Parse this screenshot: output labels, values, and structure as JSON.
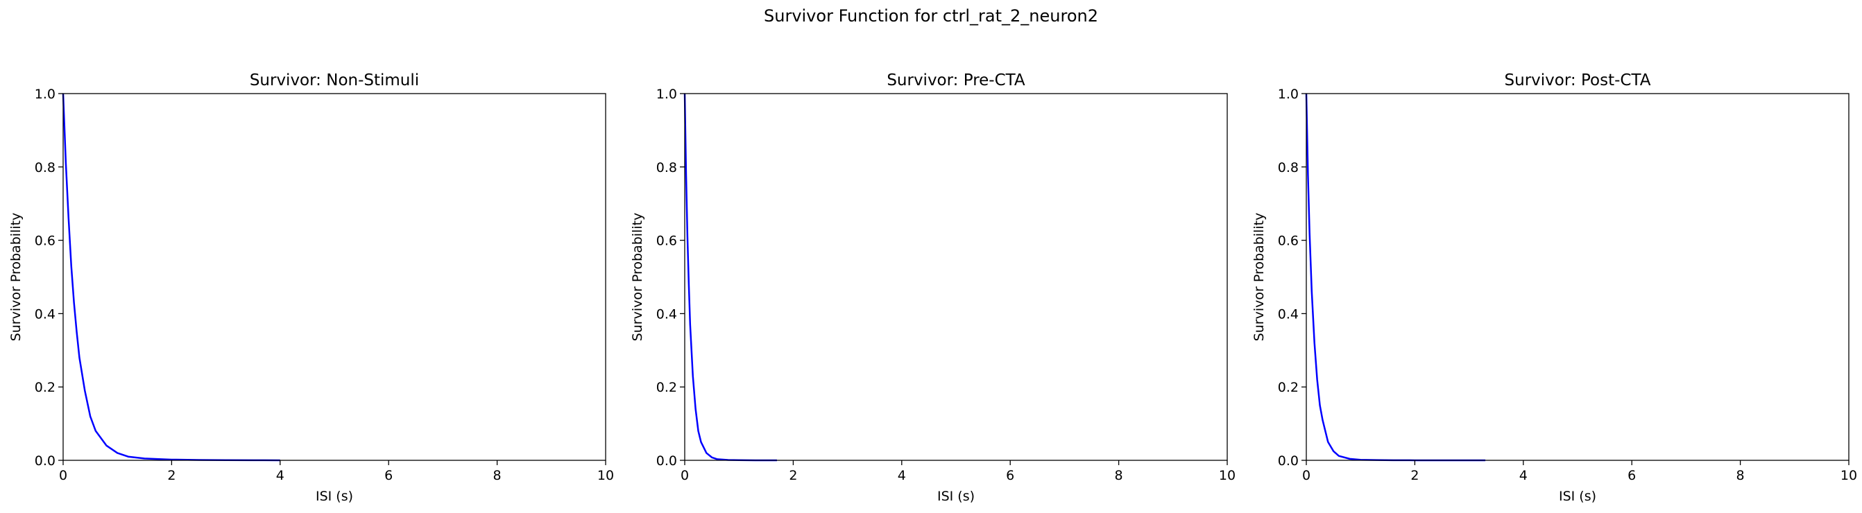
{
  "figure": {
    "suptitle": "Survivor Function for ctrl_rat_2_neuron2",
    "line_color": "#0000ff"
  },
  "chart_data": [
    {
      "type": "line",
      "title": "Survivor: Non-Stimuli",
      "xlabel": "ISI (s)",
      "ylabel": "Survivor Probability",
      "xlim": [
        0,
        10
      ],
      "ylim": [
        0,
        1
      ],
      "xticks": [
        "0",
        "2",
        "4",
        "6",
        "8",
        "10"
      ],
      "yticks": [
        "0.0",
        "0.2",
        "0.4",
        "0.6",
        "0.8",
        "1.0"
      ],
      "grid": false,
      "series": [
        {
          "x": [
            0,
            0.05,
            0.1,
            0.15,
            0.2,
            0.25,
            0.3,
            0.4,
            0.5,
            0.6,
            0.8,
            1.0,
            1.2,
            1.5,
            2.0,
            2.5,
            3.0,
            3.5,
            4.0
          ],
          "y": [
            1.0,
            0.81,
            0.66,
            0.53,
            0.43,
            0.35,
            0.28,
            0.19,
            0.12,
            0.08,
            0.04,
            0.02,
            0.01,
            0.005,
            0.002,
            0.001,
            0.0005,
            0.0002,
            0.0001
          ]
        }
      ]
    },
    {
      "type": "line",
      "title": "Survivor: Pre-CTA",
      "xlabel": "ISI (s)",
      "ylabel": "Survivor Probability",
      "xlim": [
        0,
        10
      ],
      "ylim": [
        0,
        1
      ],
      "xticks": [
        "0",
        "2",
        "4",
        "6",
        "8",
        "10"
      ],
      "yticks": [
        "0.0",
        "0.2",
        "0.4",
        "0.6",
        "0.8",
        "1.0"
      ],
      "grid": false,
      "series": [
        {
          "x": [
            0,
            0.025,
            0.05,
            0.075,
            0.1,
            0.15,
            0.2,
            0.25,
            0.3,
            0.4,
            0.5,
            0.6,
            0.8,
            1.0,
            1.3,
            1.7
          ],
          "y": [
            1.0,
            0.78,
            0.61,
            0.48,
            0.37,
            0.23,
            0.14,
            0.08,
            0.05,
            0.02,
            0.008,
            0.003,
            0.001,
            0.0004,
            0.0001,
            0.0
          ]
        }
      ]
    },
    {
      "type": "line",
      "title": "Survivor: Post-CTA",
      "xlabel": "ISI (s)",
      "ylabel": "Survivor Probability",
      "xlim": [
        0,
        10
      ],
      "ylim": [
        0,
        1
      ],
      "xticks": [
        "0",
        "2",
        "4",
        "6",
        "8",
        "10"
      ],
      "yticks": [
        "0.0",
        "0.2",
        "0.4",
        "0.6",
        "0.8",
        "1.0"
      ],
      "grid": false,
      "series": [
        {
          "x": [
            0,
            0.03,
            0.06,
            0.1,
            0.15,
            0.2,
            0.25,
            0.3,
            0.4,
            0.5,
            0.6,
            0.8,
            1.0,
            1.3,
            1.6,
            2.0,
            2.5,
            3.3
          ],
          "y": [
            1.0,
            0.78,
            0.62,
            0.46,
            0.32,
            0.22,
            0.15,
            0.11,
            0.05,
            0.025,
            0.012,
            0.004,
            0.0015,
            0.0006,
            0.0003,
            0.0001,
            0.0,
            0.0
          ]
        }
      ]
    }
  ]
}
